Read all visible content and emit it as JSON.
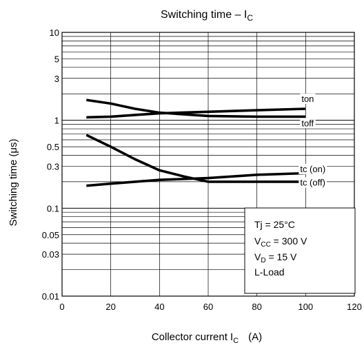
{
  "chart_data": {
    "type": "line",
    "title": "Switching time – I",
    "title_sub": "C",
    "xlabel": "Collector current  I",
    "xlabel_sub": "C",
    "xlabel_unit": "(A)",
    "ylabel": "Switching time   (μs)",
    "xlim": [
      0,
      120
    ],
    "ylim": [
      0.01,
      10
    ],
    "yscale": "log",
    "grid": true,
    "x_ticks": [
      {
        "value": 0,
        "label": "0"
      },
      {
        "value": 20,
        "label": "20"
      },
      {
        "value": 40,
        "label": "40"
      },
      {
        "value": 60,
        "label": "60"
      },
      {
        "value": 80,
        "label": "80"
      },
      {
        "value": 100,
        "label": "100"
      },
      {
        "value": 120,
        "label": "120"
      }
    ],
    "y_ticks": [
      {
        "value": 0.01,
        "label": "0.01"
      },
      {
        "value": 0.03,
        "label": "0.03"
      },
      {
        "value": 0.05,
        "label": "0.05"
      },
      {
        "value": 0.1,
        "label": "0.1"
      },
      {
        "value": 0.3,
        "label": "0.3"
      },
      {
        "value": 0.5,
        "label": "0.5"
      },
      {
        "value": 1,
        "label": "1"
      },
      {
        "value": 3,
        "label": "3"
      },
      {
        "value": 5,
        "label": "5"
      },
      {
        "value": 10,
        "label": "10"
      }
    ],
    "series": [
      {
        "name": "ton",
        "x": [
          10,
          20,
          30,
          40,
          60,
          80,
          100
        ],
        "y": [
          1.08,
          1.1,
          1.15,
          1.2,
          1.25,
          1.3,
          1.35
        ]
      },
      {
        "name": "toff",
        "x": [
          10,
          20,
          30,
          40,
          60,
          80,
          100
        ],
        "y": [
          1.7,
          1.55,
          1.35,
          1.22,
          1.12,
          1.1,
          1.1
        ]
      },
      {
        "name": "tc (on)",
        "x": [
          10,
          20,
          30,
          40,
          50,
          60,
          80,
          100
        ],
        "y": [
          0.68,
          0.5,
          0.36,
          0.27,
          0.23,
          0.2,
          0.2,
          0.2
        ]
      },
      {
        "name": "tc (off)",
        "x": [
          10,
          20,
          30,
          40,
          60,
          80,
          100
        ],
        "y": [
          0.18,
          0.19,
          0.2,
          0.21,
          0.22,
          0.24,
          0.25
        ]
      }
    ],
    "annotations": [
      {
        "text": "Tj = 25°C"
      },
      {
        "text": "V",
        "sub": "CC",
        "rest": " = 300 V"
      },
      {
        "text": "V",
        "sub": "D",
        "rest": " = 15 V"
      },
      {
        "text": "L-Load"
      }
    ]
  }
}
